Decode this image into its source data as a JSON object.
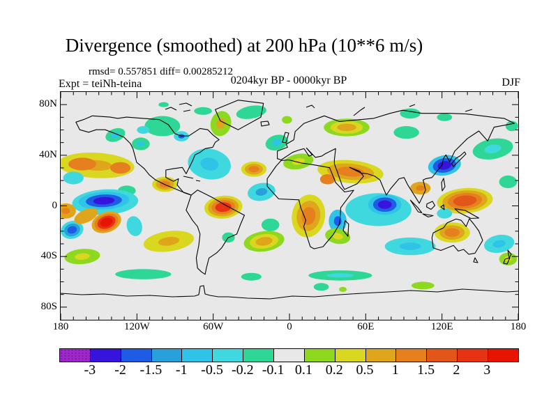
{
  "title": "Divergence (smoothed) at 200 hPa (10**6 m/s)",
  "stats_line": "rmsd= 0.557851 diff= 0.00285212",
  "expt_label": "Expt = teiNh-teina",
  "period_label": "0204kyr BP - 0000kyr BP",
  "season_label": "DJF",
  "chart_data": {
    "type": "heatmap",
    "subtype": "filled-contour world map, equirectangular projection",
    "title": "Divergence (smoothed) at 200 hPa (10**6 m/s)",
    "rmsd": "0.557851",
    "diff": "0.00285212",
    "lon_range": [
      -180,
      180
    ],
    "lat_range": [
      -90,
      90
    ],
    "background_color": "#e8e8e8",
    "tick_minor_deg": 10,
    "x_major_ticks_deg": [
      -180,
      -120,
      -60,
      0,
      60,
      120,
      180
    ],
    "y_major_ticks_deg": [
      80,
      40,
      0,
      -40,
      -80
    ],
    "x_tick_labels": [
      {
        "label": "180",
        "lon": -180
      },
      {
        "label": "120W",
        "lon": -120
      },
      {
        "label": "60W",
        "lon": -60
      },
      {
        "label": "0",
        "lon": 0
      },
      {
        "label": "60E",
        "lon": 60
      },
      {
        "label": "120E",
        "lon": 120
      },
      {
        "label": "180",
        "lon": 180
      }
    ],
    "y_tick_labels": [
      {
        "label": "80N",
        "lat": 80
      },
      {
        "label": "40N",
        "lat": 40
      },
      {
        "label": "0",
        "lat": 0
      },
      {
        "label": "40S",
        "lat": -40
      },
      {
        "label": "80S",
        "lat": -80
      }
    ],
    "colorbar": {
      "levels": [
        "-3",
        "-2",
        "-1.5",
        "-1",
        "-0.5",
        "-0.2",
        "-0.1",
        "0.1",
        "0.2",
        "0.5",
        "1",
        "1.5",
        "2",
        "3"
      ],
      "colors": [
        "#a028cc",
        "#3614dc",
        "#1f5ce6",
        "#27a0dc",
        "#30c3e8",
        "#3fd8de",
        "#2ed795",
        "#e8e8e8",
        "#8ed820",
        "#d9d71f",
        "#dfa51b",
        "#e67f1d",
        "#e2561a",
        "#e63313",
        "#e61400"
      ],
      "position": "bottom"
    },
    "features_note": "approximate anomaly centers: [lon, lat, rx_deg, ry_deg, rot_deg, color-band indices outer->inner]",
    "features": [
      [
        -152,
        32,
        30,
        10,
        3,
        [
          9,
          10
        ]
      ],
      [
        -163,
        33,
        11,
        5,
        0,
        [
          11
        ]
      ],
      [
        -133,
        30,
        8,
        4.5,
        0,
        [
          11
        ]
      ],
      [
        -100,
        63,
        14,
        8,
        0,
        [
          6
        ]
      ],
      [
        -68,
        75,
        7,
        3,
        0,
        [
          6
        ]
      ],
      [
        -99,
        80,
        4,
        2,
        0,
        [
          6
        ]
      ],
      [
        -115,
        60,
        5,
        3,
        0,
        [
          5
        ]
      ],
      [
        -85,
        55,
        6,
        4,
        0,
        [
          5,
          2
        ]
      ],
      [
        -137,
        56,
        8,
        5,
        -20,
        [
          6,
          4
        ]
      ],
      [
        -117,
        49,
        7,
        5,
        0,
        [
          6,
          4
        ]
      ],
      [
        -54,
        65,
        8,
        10,
        15,
        [
          8,
          10
        ]
      ],
      [
        -30,
        74,
        12,
        5,
        -10,
        [
          6
        ]
      ],
      [
        -2,
        68,
        4,
        3,
        0,
        [
          8
        ]
      ],
      [
        -10,
        50,
        9,
        6,
        -15,
        [
          6,
          4
        ]
      ],
      [
        7,
        35,
        12,
        6,
        -10,
        [
          8,
          9
        ]
      ],
      [
        45,
        62,
        18,
        7,
        0,
        [
          8,
          9,
          10
        ]
      ],
      [
        95,
        73,
        8,
        4,
        0,
        [
          6
        ]
      ],
      [
        122,
        70,
        6,
        3,
        0,
        [
          6
        ]
      ],
      [
        92,
        58,
        10,
        5,
        0,
        [
          6
        ]
      ],
      [
        175,
        63,
        5,
        4,
        0,
        [
          6
        ]
      ],
      [
        160,
        45,
        16,
        8,
        -10,
        [
          6,
          5
        ]
      ],
      [
        172,
        19,
        7,
        5,
        0,
        [
          6
        ]
      ],
      [
        -170,
        22,
        8,
        5,
        0,
        [
          5
        ]
      ],
      [
        -128,
        12,
        7,
        4,
        0,
        [
          6
        ]
      ],
      [
        -63,
        33,
        17,
        12,
        10,
        [
          5,
          4
        ]
      ],
      [
        -28,
        29,
        10,
        6,
        0,
        [
          9,
          10,
          11
        ]
      ],
      [
        -22,
        11,
        11,
        7,
        -10,
        [
          5,
          3
        ]
      ],
      [
        -98,
        17,
        10,
        6,
        0,
        [
          9,
          10,
          11
        ]
      ],
      [
        48,
        27,
        26,
        9,
        5,
        [
          9,
          10,
          11
        ]
      ],
      [
        30,
        21,
        6,
        4,
        0,
        [
          11
        ]
      ],
      [
        122,
        32,
        13,
        8,
        -10,
        [
          4,
          2,
          1
        ]
      ],
      [
        70,
        -3,
        26,
        13,
        0,
        [
          5
        ]
      ],
      [
        75,
        1,
        13,
        8,
        0,
        [
          4,
          2,
          1
        ]
      ],
      [
        38,
        -12,
        7,
        9,
        0,
        [
          4,
          2
        ]
      ],
      [
        15,
        -8,
        13,
        17,
        10,
        [
          9,
          10,
          11
        ]
      ],
      [
        38,
        -24,
        10,
        6,
        10,
        [
          8,
          9
        ]
      ],
      [
        103,
        14,
        8,
        5,
        0,
        [
          10,
          11
        ]
      ],
      [
        138,
        4,
        22,
        10,
        -5,
        [
          9,
          10,
          11,
          12
        ]
      ],
      [
        122,
        -6,
        6,
        4,
        0,
        [
          5
        ]
      ],
      [
        128,
        -21,
        14,
        8,
        0,
        [
          9,
          10,
          11
        ]
      ],
      [
        165,
        -30,
        12,
        7,
        -10,
        [
          5,
          4
        ]
      ],
      [
        172,
        -42,
        7,
        5,
        0,
        [
          8,
          9
        ]
      ],
      [
        95,
        -32,
        20,
        7,
        0,
        [
          5,
          4
        ]
      ],
      [
        -20,
        -28,
        16,
        8,
        -8,
        [
          8,
          9,
          10
        ]
      ],
      [
        -15,
        -15,
        7,
        5,
        0,
        [
          6
        ]
      ],
      [
        -48,
        -25,
        5,
        4,
        0,
        [
          6
        ]
      ],
      [
        -52,
        -1,
        15,
        9,
        -5,
        [
          9,
          10,
          11,
          13
        ]
      ],
      [
        -122,
        -16,
        6,
        8,
        -15,
        [
          5
        ]
      ],
      [
        -95,
        -28,
        20,
        8,
        -8,
        [
          9,
          10
        ]
      ],
      [
        -145,
        3,
        26,
        10,
        -3,
        [
          5
        ]
      ],
      [
        -146,
        4,
        20,
        7,
        -3,
        [
          4,
          2,
          1
        ]
      ],
      [
        -144,
        -13,
        12,
        8,
        -20,
        [
          10,
          11,
          13,
          14
        ]
      ],
      [
        -171,
        -19,
        9,
        7,
        -15,
        [
          5,
          3,
          2
        ]
      ],
      [
        -176,
        -4,
        8,
        6,
        0,
        [
          10,
          11
        ]
      ],
      [
        -160,
        -8,
        10,
        5,
        -25,
        [
          10
        ]
      ],
      [
        -163,
        -40,
        14,
        6,
        -5,
        [
          8,
          9
        ]
      ],
      [
        -115,
        -54,
        22,
        4,
        0,
        [
          6
        ]
      ],
      [
        -30,
        -56,
        8,
        3,
        0,
        [
          6
        ]
      ],
      [
        40,
        -55,
        25,
        4,
        0,
        [
          6,
          5
        ]
      ],
      [
        105,
        -63,
        9,
        3,
        0,
        [
          8
        ]
      ],
      [
        25,
        -64,
        6,
        3,
        0,
        [
          6
        ]
      ],
      [
        42,
        -66,
        3,
        2,
        0,
        [
          8
        ]
      ]
    ],
    "coastlines": [
      "M21.8,43.3 L27.3,54.2 40,57.8 50.9,54.2 63.6,54.2 78.1,59.6 90.8,65 99.9,74 103.6,81.3 109,101.1 119.9,110.1 127.2,119.2 136.2,126.4 150.8,133.6 159.9,137.2 172.6,142.6 185.3,147.2 187.1,148.1 176.2,144.4 167.1,133.6 168.9,124.6 161.7,128.2 150.8,122.8 150.8,112 161.7,110.1 174.4,108.3 179.9,117.4 181.7,113.8 188.9,99.3 192.6,90.3 199.8,86.7 207.1,81.3 218,79.4 221.6,72.2 227.1,68.6 218,61.4 210.8,54.2 199.8,52.4 183.5,63.2 172.6,63.2 163.5,59.6 154.4,47 141.7,39.7 118.1,37.9 94.5,36.1 81.8,37.9 70.9,36.1 45.4,34.3 32.7,39.7 Z",
      "M187.1,148.1 L183.5,158.9 179.9,169.7 188.9,184.2 196.2,193.2 199.8,204 198,220.3 194.4,238.4 196.2,252.8 201.7,258.2 207.1,261.8 208.9,252.8 212.6,238.4 223.5,231.1 230.7,223.9 239.8,209.4 252.5,204 258,189.6 263.4,177 236.2,162.5 218,151.7 196.2,140.8 Z",
      "M221.6,25.3 L254.4,11.7 290.7,16.3 287,36.1 254.4,54.2 228.9,41.5 Z",
      "M316.1,98.4 L308.8,106.5 296.1,124.6 296.1,135.4 312.5,153.5 341.5,154.8 344.2,166.1 351.5,184.2 348.4,193.2 357.9,222.1 363.3,225.1 376.1,222.1 390.6,205 399.7,189.6 400.6,181.5 401.5,166.1 420.1,141.2 407,143.5 394.2,130 385.6,108.7 363.3,104.7 345.2,102 327,97.5 Z",
      "M310.6,84.9 L310.6,95.7 316.1,97.5 332.5,86.7 339.7,84 348.8,81.3 356.1,92.1 360.6,90.3 352.4,80.4 365.1,93.9 374.2,92.1 379.7,88.5 394.2,81.3 392.4,97.5 392.4,102.9 403.3,133.6 406.9,139.9 425.1,131.8 434.2,121 428.8,113.8 414.3,108.3 430.6,116.5 439.7,117.4 450.5,121 457.8,126.4 466.9,148.1 472.9,139 485,124.6 492.3,122.8 497.7,133.6 514.2,159.8 523.2,140.8 519.6,126.4 523.2,124.6 532.3,122.8 546.8,104.7 548.7,95.7 552.3,90.3 557.7,100.2 565,84.9 583.2,66.8 599.5,56 612.2,70.4 621.3,50.6 650.4,45.1 635.8,37.9 617.7,36.1 581.3,31.6 557.7,30.7 517.8,30.7 490.5,26.2 472.3,30.7 448.7,37.9 399.7,42.4 377.9,34.3 348.8,45.1 336.1,56.9 334.3,68.6 323.4,75 325.2,79.4 Z",
      "M317.9,72.2 L322,58 327,59 323,73 Z",
      "M287,43 L297,42 299,47 288,49 Z",
      "M560.5,103 L567,95 573,91.5 579,86 581,89 571,99 563,107 Z",
      "M407.8,184.7 L412.8,189.5 411.9,207.2 405.1,199 Z",
      "M501.4,155.3 L512,166 517.8,173.5 512.5,172 Z",
      "M519,175 L534,177.5 527,179.5 Z",
      "M525,160.7 L533,157 536.5,163 531,168.5 524.5,165 Z",
      "M545,165 L549,162 550,169 Z",
      "M565,167.5 L580,170 599.5,181 588,181.5 571,173 Z",
      "M546,130 L549,124 551,136 547,142 Z",
      "M534.1,202.2 L532.3,209.4 534.1,223.9 545,227.5 563.2,220.3 570,228.4 577.7,226 585,233 594,231.4 605,213.1 599.5,199.5 592.2,189.6 585.9,181.9 581.3,193.2 574.1,184.2 566.9,182.4 554.2,187.8 548.7,195 Z",
      "M594,238 L598,245 592,244 Z",
      "M641,227 L646,233 643,238 Z",
      "M637,240 L644,238 640,247 635,246 Z",
      "M150,25 L158,22 166,26",
      "M170,18 L180,16 188,20",
      "M176,28 L186,26",
      "M352,22 L360,19 364,23",
      "M420,34 L430,26 436,22",
      "M500,21 L508,18",
      "M580,28 L590,25",
      "M176,121 L190,124",
      "M194,127 L200,128",
      "M0,289 L30,291 62,290 95,293 128,292 160,294 192,293 198,291 200,279 205,278 207,290 214,292 226,294 240,294 268,296 300,297 332,293 364,294 400,291 432,289 470,287 502,285 540,287 576,283 610,285 640,287 656,286"
    ]
  }
}
